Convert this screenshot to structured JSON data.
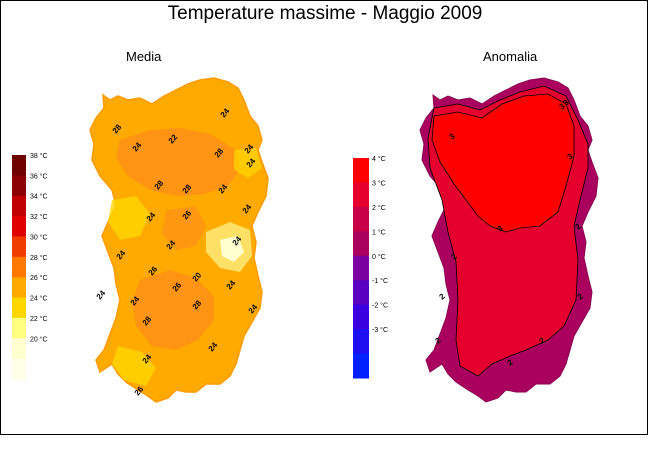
{
  "title": "Temperature massime - Maggio 2009",
  "panels": {
    "left_title": "Media",
    "right_title": "Anomalia"
  },
  "legend_left": {
    "labels": [
      "38 °C",
      "36 °C",
      "34 °C",
      "32 °C",
      "30 °C",
      "28 °C",
      "26 °C",
      "24 °C",
      "22 °C",
      "20 °C"
    ],
    "colors": [
      "#6e0000",
      "#8b0000",
      "#c00000",
      "#e00000",
      "#f03c00",
      "#ff7800",
      "#ffaa00",
      "#ffd700",
      "#ffff80",
      "#ffffd0",
      "#ffffe8"
    ]
  },
  "legend_right": {
    "labels": [
      "4 °C",
      "3 °C",
      "2 °C",
      "1 °C",
      "0 °C",
      "-1 °C",
      "-2 °C",
      "-3 °C"
    ],
    "colors": [
      "#ff0000",
      "#e6002e",
      "#c80046",
      "#aa005e",
      "#7a00a0",
      "#5a00c0",
      "#3a00e0",
      "#1e10f0",
      "#0020ff"
    ]
  },
  "map_left": {
    "fill_base": "#ffaa00",
    "contour_labels": [
      "28",
      "24",
      "22",
      "24",
      "28",
      "24",
      "24",
      "28",
      "28",
      "24",
      "24",
      "26",
      "24",
      "24",
      "26",
      "20",
      "26",
      "24",
      "28",
      "28",
      "24",
      "24",
      "24",
      "26",
      "24",
      "24",
      "24",
      "24"
    ]
  },
  "map_right": {
    "fill_inner": "#ff0000",
    "fill_mid": "#e6002e",
    "fill_outer": "#aa005e",
    "contour_labels": [
      "3",
      "3",
      "3",
      "2",
      "2",
      "2",
      "3",
      "3",
      "2",
      "2",
      "2",
      "2"
    ]
  }
}
